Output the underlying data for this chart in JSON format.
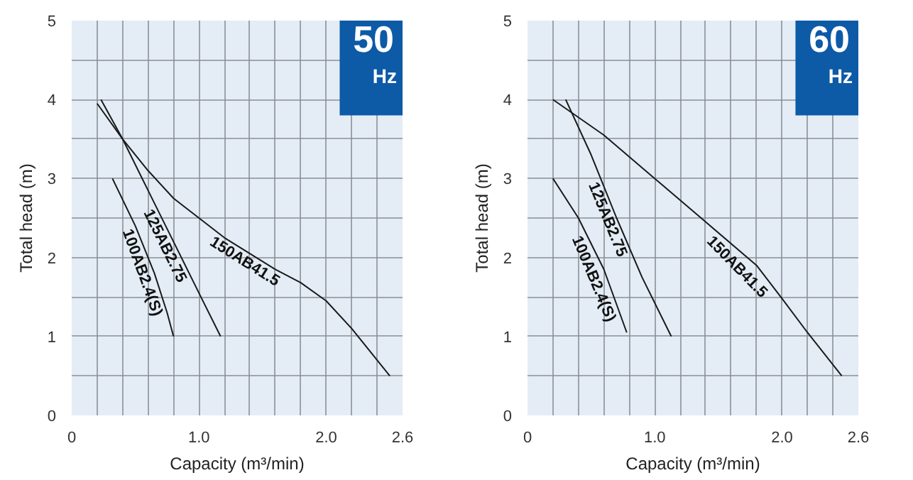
{
  "chart_data": [
    {
      "type": "line",
      "xlabel": "Capacity (m³/min)",
      "ylabel": "Total head (m)",
      "annotations": [
        "50",
        "Hz"
      ],
      "grid": true,
      "marker": "none",
      "line_style": "solid",
      "xlim": [
        0,
        2.6
      ],
      "ylim": [
        0,
        5
      ],
      "xticks": [
        {
          "value": 0,
          "label": "0"
        },
        {
          "value": 0.2,
          "label": null
        },
        {
          "value": 0.4,
          "label": null
        },
        {
          "value": 0.6,
          "label": null
        },
        {
          "value": 0.8,
          "label": null
        },
        {
          "value": 1.0,
          "label": "1.0"
        },
        {
          "value": 1.2,
          "label": null
        },
        {
          "value": 1.4,
          "label": null
        },
        {
          "value": 1.6,
          "label": null
        },
        {
          "value": 1.8,
          "label": null
        },
        {
          "value": 2.0,
          "label": "2.0"
        },
        {
          "value": 2.2,
          "label": null
        },
        {
          "value": 2.4,
          "label": null
        },
        {
          "value": 2.6,
          "label": "2.6"
        }
      ],
      "yticks": [
        0,
        {
          "value": 0.5,
          "label": null
        },
        1,
        {
          "value": 1.5,
          "label": null
        },
        2,
        {
          "value": 2.5,
          "label": null
        },
        3,
        {
          "value": 3.5,
          "label": null
        },
        4,
        {
          "value": 4.5,
          "label": null
        },
        5
      ],
      "series": [
        {
          "name": "150AB41.5",
          "color": "#1a1a1a",
          "x": [
            0.2,
            0.4,
            0.6,
            0.8,
            1.0,
            1.2,
            1.4,
            1.6,
            1.8,
            2.0,
            2.2,
            2.4,
            2.5
          ],
          "values": [
            3.95,
            3.5,
            3.1,
            2.75,
            2.5,
            2.25,
            2.05,
            1.85,
            1.68,
            1.45,
            1.1,
            0.7,
            0.5
          ]
        },
        {
          "name": "125AB2.75",
          "color": "#1a1a1a",
          "x": [
            0.23,
            0.4,
            0.6,
            0.8,
            1.0,
            1.17
          ],
          "values": [
            4.0,
            3.5,
            2.85,
            2.2,
            1.55,
            1.0
          ]
        },
        {
          "name": "100AB2.4(S)",
          "color": "#1a1a1a",
          "x": [
            0.32,
            0.5,
            0.65,
            0.75,
            0.8
          ],
          "values": [
            3.0,
            2.4,
            1.8,
            1.3,
            1.0
          ]
        }
      ]
    },
    {
      "type": "line",
      "xlabel": "Capacity (m³/min)",
      "ylabel": "Total head (m)",
      "annotations": [
        "60",
        "Hz"
      ],
      "grid": true,
      "marker": "none",
      "line_style": "solid",
      "xlim": [
        0,
        2.6
      ],
      "ylim": [
        0,
        5
      ],
      "xticks": [
        {
          "value": 0,
          "label": "0"
        },
        {
          "value": 0.2,
          "label": null
        },
        {
          "value": 0.4,
          "label": null
        },
        {
          "value": 0.6,
          "label": null
        },
        {
          "value": 0.8,
          "label": null
        },
        {
          "value": 1.0,
          "label": "1.0"
        },
        {
          "value": 1.2,
          "label": null
        },
        {
          "value": 1.4,
          "label": null
        },
        {
          "value": 1.6,
          "label": null
        },
        {
          "value": 1.8,
          "label": null
        },
        {
          "value": 2.0,
          "label": "2.0"
        },
        {
          "value": 2.2,
          "label": null
        },
        {
          "value": 2.4,
          "label": null
        },
        {
          "value": 2.6,
          "label": "2.6"
        }
      ],
      "yticks": [
        0,
        {
          "value": 0.5,
          "label": null
        },
        1,
        {
          "value": 1.5,
          "label": null
        },
        2,
        {
          "value": 2.5,
          "label": null
        },
        3,
        {
          "value": 3.5,
          "label": null
        },
        4,
        {
          "value": 4.5,
          "label": null
        },
        5
      ],
      "series": [
        {
          "name": "150AB41.5",
          "color": "#1a1a1a",
          "x": [
            0.2,
            0.6,
            1.0,
            1.4,
            1.8,
            2.0,
            2.2,
            2.47
          ],
          "values": [
            4.0,
            3.55,
            3.0,
            2.45,
            1.9,
            1.48,
            1.05,
            0.5
          ]
        },
        {
          "name": "125AB2.75",
          "color": "#1a1a1a",
          "x": [
            0.3,
            0.5,
            0.7,
            0.9,
            1.13
          ],
          "values": [
            4.0,
            3.3,
            2.5,
            1.75,
            1.0
          ]
        },
        {
          "name": "100AB2.4(S)",
          "color": "#1a1a1a",
          "x": [
            0.2,
            0.4,
            0.6,
            0.78
          ],
          "values": [
            3.0,
            2.5,
            1.85,
            1.05
          ]
        }
      ]
    }
  ]
}
